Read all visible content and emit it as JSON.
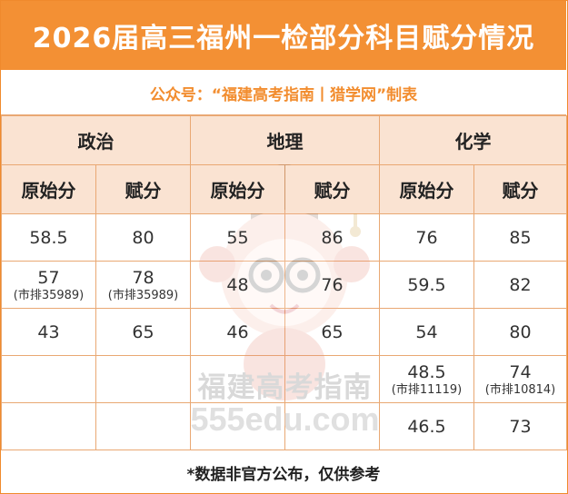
{
  "title": "2026届高三福州一检部分科目赋分情况",
  "subtitle": "公众号：“福建高考指南丨猎学网”制表",
  "subjects": [
    "政治",
    "地理",
    "化学"
  ],
  "column_headers": [
    "原始分",
    "赋分",
    "原始分",
    "赋分",
    "原始分",
    "赋分"
  ],
  "rows": [
    [
      {
        "v": "58.5",
        "r": ""
      },
      {
        "v": "80",
        "r": ""
      },
      {
        "v": "55",
        "r": ""
      },
      {
        "v": "86",
        "r": ""
      },
      {
        "v": "76",
        "r": ""
      },
      {
        "v": "85",
        "r": ""
      }
    ],
    [
      {
        "v": "57",
        "r": "(市排35989)"
      },
      {
        "v": "78",
        "r": "(市排35989)"
      },
      {
        "v": "48",
        "r": ""
      },
      {
        "v": "76",
        "r": ""
      },
      {
        "v": "59.5",
        "r": ""
      },
      {
        "v": "82",
        "r": ""
      }
    ],
    [
      {
        "v": "43",
        "r": ""
      },
      {
        "v": "65",
        "r": ""
      },
      {
        "v": "46",
        "r": ""
      },
      {
        "v": "65",
        "r": ""
      },
      {
        "v": "54",
        "r": ""
      },
      {
        "v": "80",
        "r": ""
      }
    ],
    [
      {
        "v": "",
        "r": ""
      },
      {
        "v": "",
        "r": ""
      },
      {
        "v": "",
        "r": ""
      },
      {
        "v": "",
        "r": ""
      },
      {
        "v": "48.5",
        "r": "(市排11119)"
      },
      {
        "v": "74",
        "r": "(市排10814)"
      }
    ],
    [
      {
        "v": "",
        "r": ""
      },
      {
        "v": "",
        "r": ""
      },
      {
        "v": "",
        "r": ""
      },
      {
        "v": "",
        "r": ""
      },
      {
        "v": "46.5",
        "r": ""
      },
      {
        "v": "73",
        "r": ""
      }
    ]
  ],
  "footer": "*数据非官方公布，仅供参考",
  "watermark": {
    "text": "福建高考指南",
    "site": "555edu.com",
    "icon": "mascot-graduation-cap-icon"
  },
  "colors": {
    "accent": "#f39034",
    "header_bg": "#fae3d2",
    "border": "#e9a873",
    "subtitle_text": "#f28d2f"
  }
}
